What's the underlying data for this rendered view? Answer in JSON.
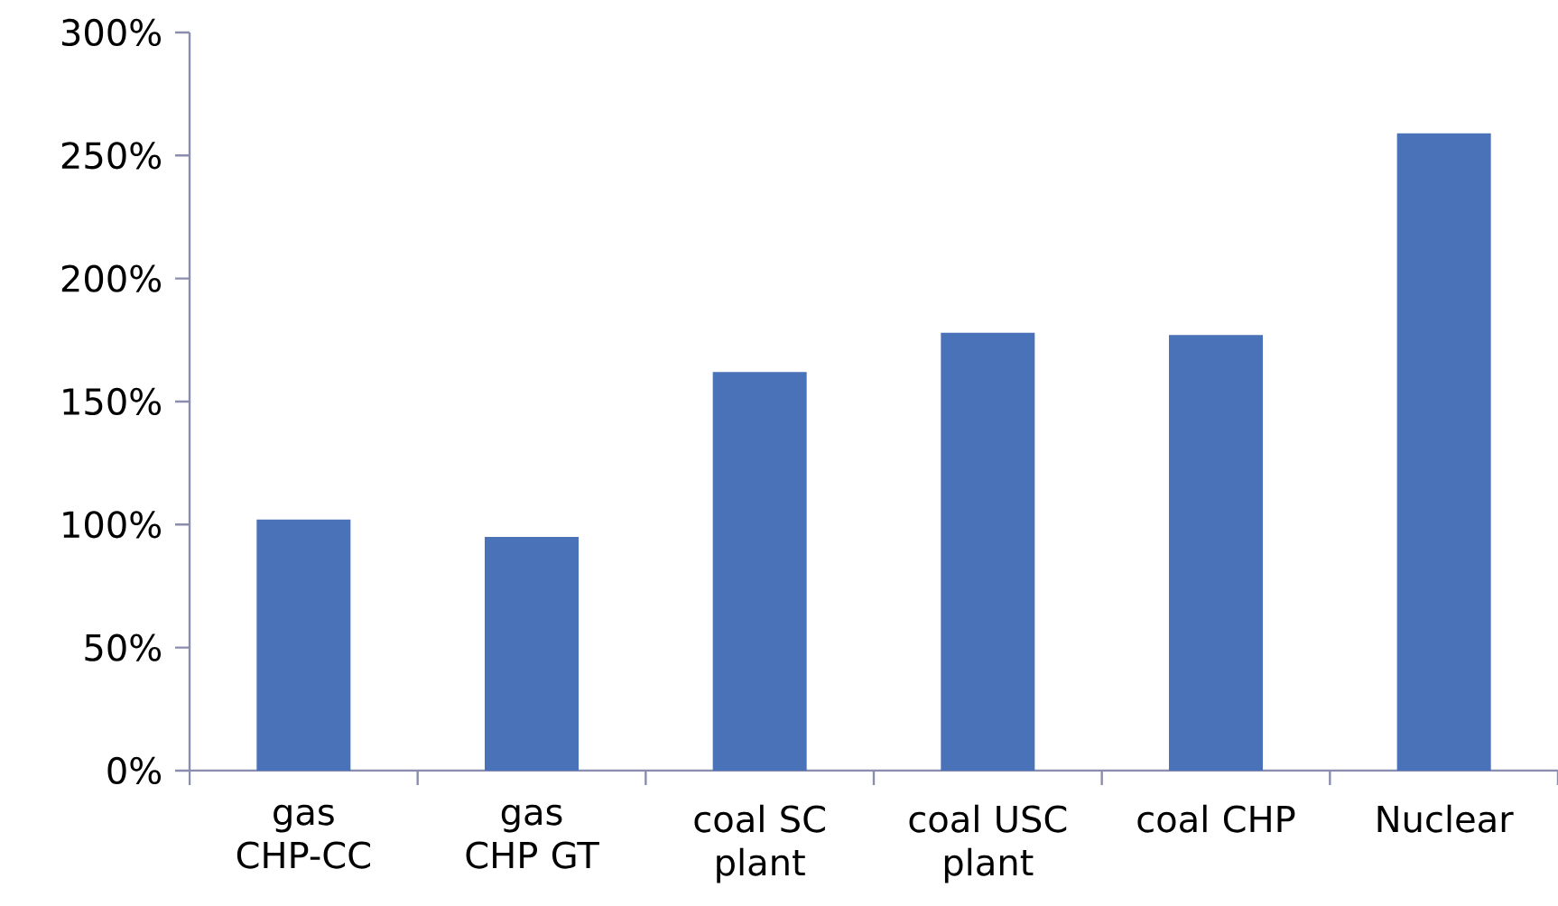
{
  "chart_data": {
    "type": "bar",
    "categories": [
      "gas CHP-CC",
      "gas CHP GT",
      "coal SC plant",
      "coal USC plant",
      "coal CHP",
      "Nuclear"
    ],
    "values": [
      102,
      95,
      162,
      178,
      177,
      259
    ],
    "color": "#4a72b8",
    "ylim": [
      0,
      300
    ],
    "yticks": [
      {
        "value": 0,
        "label": "0%"
      },
      {
        "value": 50,
        "label": "50%"
      },
      {
        "value": 100,
        "label": "100%"
      },
      {
        "value": 150,
        "label": "150%"
      },
      {
        "value": 200,
        "label": "200%"
      },
      {
        "value": 250,
        "label": "250%"
      },
      {
        "value": 300,
        "label": "300%"
      }
    ],
    "grid": false
  }
}
